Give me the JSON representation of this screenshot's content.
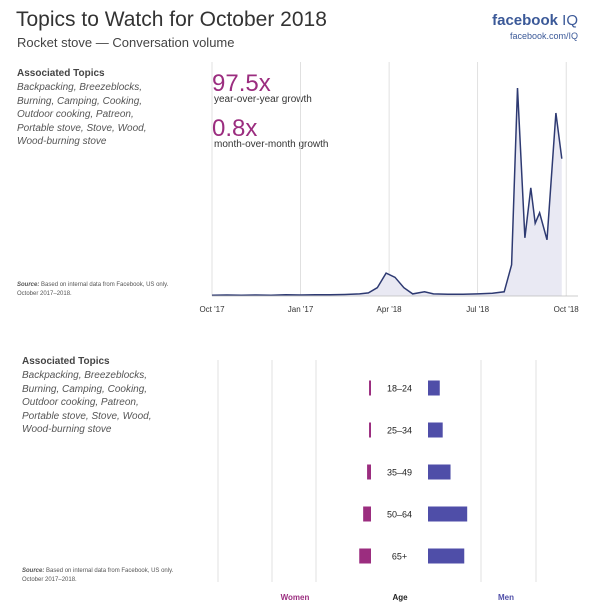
{
  "header": {
    "title": "Topics to Watch for October 2018",
    "subtitle": "Rocket stove — Conversation volume",
    "brand_name": "facebook",
    "brand_suffix": "IQ",
    "brand_url": "facebook.com/IQ"
  },
  "panel_top": {
    "topics_heading": "Associated Topics",
    "topics_lines": [
      "Backpacking, Breezeblocks,",
      "Burning, Camping, Cooking,",
      "Outdoor cooking, Patreon,",
      "Portable stove, Stove, Wood,",
      "Wood-burning stove"
    ],
    "source_label": "Source:",
    "source_text": "Based on internal data from Facebook, US only.",
    "source_text2": "October 2017–2018."
  },
  "panel_bottom": {
    "topics_heading": "Associated Topics",
    "topics_lines": [
      "Backpacking, Breezeblocks,",
      "Burning, Camping, Cooking,",
      "Outdoor cooking, Patreon,",
      "Portable stove, Stove, Wood,",
      "Wood-burning stove"
    ],
    "source_label": "Source:",
    "source_text": "Based on internal data from Facebook, US only.",
    "source_text2": "October 2017–2018."
  },
  "stats": {
    "yoy_value": "97.5x",
    "yoy_label": "year-over-year growth",
    "mom_value": "0.8x",
    "mom_label": "month-over-month growth"
  },
  "colors": {
    "line": "#2e3a72",
    "area": "#e9e9f3",
    "grid": "#d9d9d9",
    "women": "#9b2d7f",
    "men": "#4f4ea8",
    "accent": "#9b2d7f",
    "brand": "#3b5998"
  },
  "chart_data": [
    {
      "type": "area",
      "x_ticks": [
        "Oct '17",
        "Jan '17",
        "Apr '18",
        "Jul '18",
        "Oct '18"
      ],
      "x_tick_months": [
        0,
        3,
        6,
        9,
        12
      ],
      "x_range": [
        0,
        12.4
      ],
      "y_range": [
        0,
        100
      ],
      "y_axis_labeled": false,
      "grid": "vertical",
      "points": [
        [
          0,
          0.4
        ],
        [
          0.5,
          0.5
        ],
        [
          1,
          0.4
        ],
        [
          1.5,
          0.5
        ],
        [
          2,
          0.4
        ],
        [
          2.5,
          0.6
        ],
        [
          3,
          0.5
        ],
        [
          3.5,
          0.6
        ],
        [
          4,
          0.6
        ],
        [
          4.5,
          0.7
        ],
        [
          5,
          1.0
        ],
        [
          5.3,
          1.5
        ],
        [
          5.6,
          4
        ],
        [
          5.9,
          11
        ],
        [
          6.2,
          9
        ],
        [
          6.5,
          4
        ],
        [
          6.8,
          1.0
        ],
        [
          7.2,
          2.0
        ],
        [
          7.5,
          1.0
        ],
        [
          8,
          0.8
        ],
        [
          8.5,
          0.8
        ],
        [
          9,
          1.0
        ],
        [
          9.5,
          1.3
        ],
        [
          9.9,
          2.0
        ],
        [
          10.15,
          15
        ],
        [
          10.35,
          100
        ],
        [
          10.6,
          28
        ],
        [
          10.8,
          52
        ],
        [
          10.95,
          35
        ],
        [
          11.1,
          40
        ],
        [
          11.35,
          27
        ],
        [
          11.65,
          88
        ],
        [
          11.85,
          66
        ]
      ]
    },
    {
      "type": "bar",
      "orientation": "horizontal-diverging",
      "categories": [
        "18–24",
        "25–34",
        "35–49",
        "50–64",
        "65+"
      ],
      "series": [
        {
          "name": "Women",
          "values": [
            2,
            2,
            4,
            8,
            12
          ]
        },
        {
          "name": "Men",
          "values": [
            12,
            15,
            23,
            40,
            37
          ]
        }
      ],
      "center_label": "Age"
    }
  ]
}
